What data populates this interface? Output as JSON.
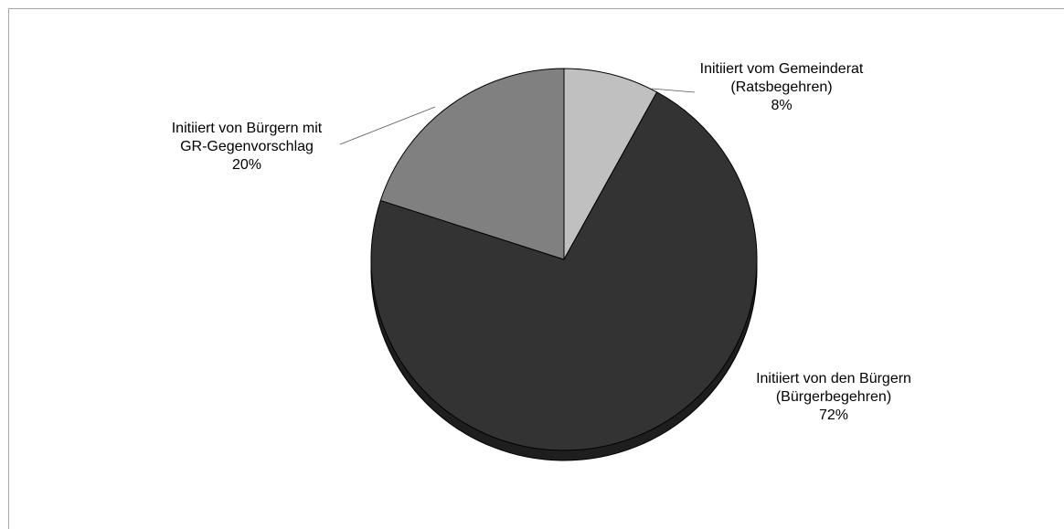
{
  "chart_data": {
    "type": "pie",
    "style": "3d-tilted",
    "start_angle": "12 o'clock, clockwise",
    "slices": [
      {
        "label_lines": [
          "Initiiert vom Gemeinderat",
          "(Ratsbegehren)"
        ],
        "percent_label": "8%",
        "value": 8,
        "color": "#c0c0c0",
        "side_color": "#9a9a9a"
      },
      {
        "label_lines": [
          "Initiiert von den Bürgern",
          "(Bürgerbegehren)"
        ],
        "percent_label": "72%",
        "value": 72,
        "color": "#333333",
        "side_color": "#1e1e1e"
      },
      {
        "label_lines": [
          "Initiiert von Bürgern mit",
          "GR-Gegenvorschlag"
        ],
        "percent_label": "20%",
        "value": 20,
        "color": "#808080",
        "side_color": "#5e5e5e"
      }
    ]
  }
}
